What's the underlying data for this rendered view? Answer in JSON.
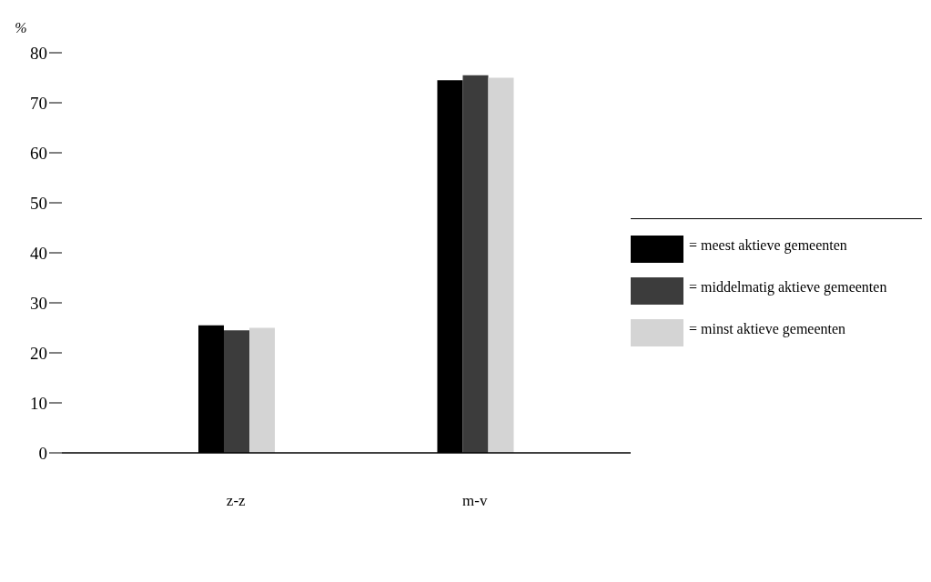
{
  "chart_data": {
    "type": "bar",
    "ylabel": "%",
    "categories": [
      "z-z",
      "m-v"
    ],
    "series": [
      {
        "name": "= meest aktieve gemeenten",
        "color": "#000000",
        "values": [
          25.5,
          74.5
        ]
      },
      {
        "name": "= middelmatig aktieve gemeenten",
        "color": "#3c3c3c",
        "values": [
          24.5,
          75.5
        ]
      },
      {
        "name": "= minst aktieve gemeenten",
        "color": "#d4d4d4",
        "values": [
          25,
          75
        ]
      }
    ],
    "ylim": [
      0,
      80
    ],
    "yticks": [
      0,
      10,
      20,
      30,
      40,
      50,
      60,
      70,
      80
    ],
    "grid": false,
    "legend": "right"
  }
}
